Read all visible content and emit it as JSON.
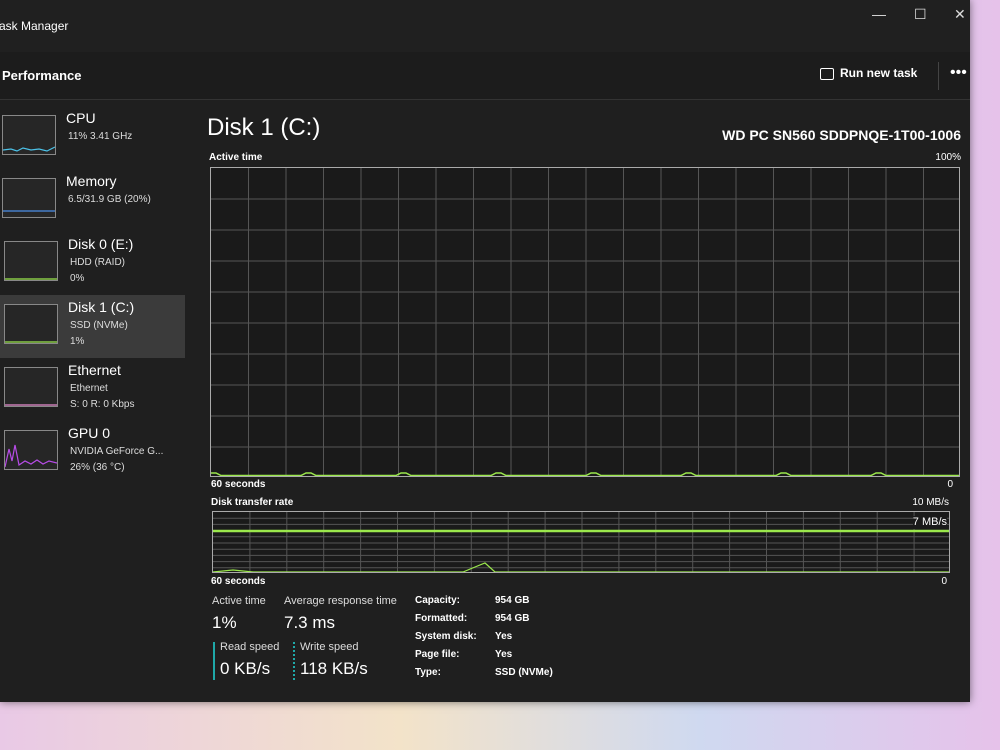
{
  "window": {
    "title": "Task Manager",
    "minimize": "—",
    "maximize": "☐",
    "close": "✕"
  },
  "header": {
    "title": "Performance",
    "run_new_task": "Run new task",
    "more": "•••"
  },
  "sidebar": {
    "items": [
      {
        "name": "CPU",
        "line1": "11% 3.41 GHz",
        "line2": "",
        "color": "#4cc2e8"
      },
      {
        "name": "Memory",
        "line1": "6.5/31.9 GB (20%)",
        "line2": "",
        "color": "#4b8ee8"
      },
      {
        "name": "Disk 0 (E:)",
        "line1": "HDD (RAID)",
        "line2": "0%",
        "color": "#9be84c"
      },
      {
        "name": "Disk 1 (C:)",
        "line1": "SSD (NVMe)",
        "line2": "1%",
        "color": "#9be84c"
      },
      {
        "name": "Ethernet",
        "line1": "Ethernet",
        "line2": "S: 0 R: 0 Kbps",
        "color": "#e88ccf"
      },
      {
        "name": "GPU 0",
        "line1": "NVIDIA GeForce G...",
        "line2": "26% (36 °C)",
        "color": "#b84ce8"
      }
    ],
    "selected": "Disk 1 (C:)"
  },
  "main": {
    "title": "Disk 1 (C:)",
    "model": "WD PC SN560 SDDPNQE-1T00-1006",
    "active_chart": {
      "label": "Active time",
      "max": "100%",
      "time": "60 seconds",
      "min": "0"
    },
    "transfer_chart": {
      "label": "Disk transfer rate",
      "max": "10 MB/s",
      "marker": "7 MB/s",
      "time": "60 seconds",
      "min": "0"
    },
    "stats": {
      "active_time_label": "Active time",
      "active_time": "1%",
      "avg_resp_label": "Average response time",
      "avg_resp": "7.3 ms",
      "read_label": "Read speed",
      "read": "0 KB/s",
      "write_label": "Write speed",
      "write": "118 KB/s"
    },
    "properties": [
      {
        "k": "Capacity:",
        "v": "954 GB"
      },
      {
        "k": "Formatted:",
        "v": "954 GB"
      },
      {
        "k": "System disk:",
        "v": "Yes"
      },
      {
        "k": "Page file:",
        "v": "Yes"
      },
      {
        "k": "Type:",
        "v": "SSD (NVMe)"
      }
    ]
  },
  "colors": {
    "disk": "#9be84c",
    "accent_read": "#1fa8a8"
  }
}
